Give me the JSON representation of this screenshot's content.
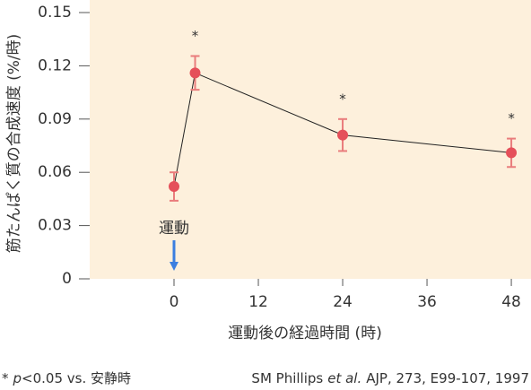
{
  "chart_data": {
    "type": "line",
    "x_label": "運動後の経過時間 (時)",
    "y_label": "筋たんぱく質の合成速度 (%/時)",
    "x": [
      0,
      3,
      24,
      48
    ],
    "series": [
      {
        "color": "#e5505a",
        "values": [
          0.052,
          0.116,
          0.081,
          0.071
        ],
        "errors": [
          0.008,
          0.0095,
          0.009,
          0.008
        ]
      }
    ],
    "significance": [
      null,
      "*",
      "*",
      "*"
    ],
    "xlim": [
      -12,
      50.8
    ],
    "ylim": [
      0,
      0.15
    ],
    "xticks": [
      0,
      12,
      24,
      36,
      48
    ],
    "yticks": [
      0,
      0.03,
      0.06,
      0.09,
      0.12,
      0.15
    ],
    "annotation": {
      "text": "運動",
      "x": 0
    },
    "footnote": [
      "*",
      "p",
      "<0.05 vs. 安静時"
    ],
    "citation": [
      "SM Phillips",
      "et al.",
      "AJP, 273, E99-107, 1997"
    ]
  }
}
